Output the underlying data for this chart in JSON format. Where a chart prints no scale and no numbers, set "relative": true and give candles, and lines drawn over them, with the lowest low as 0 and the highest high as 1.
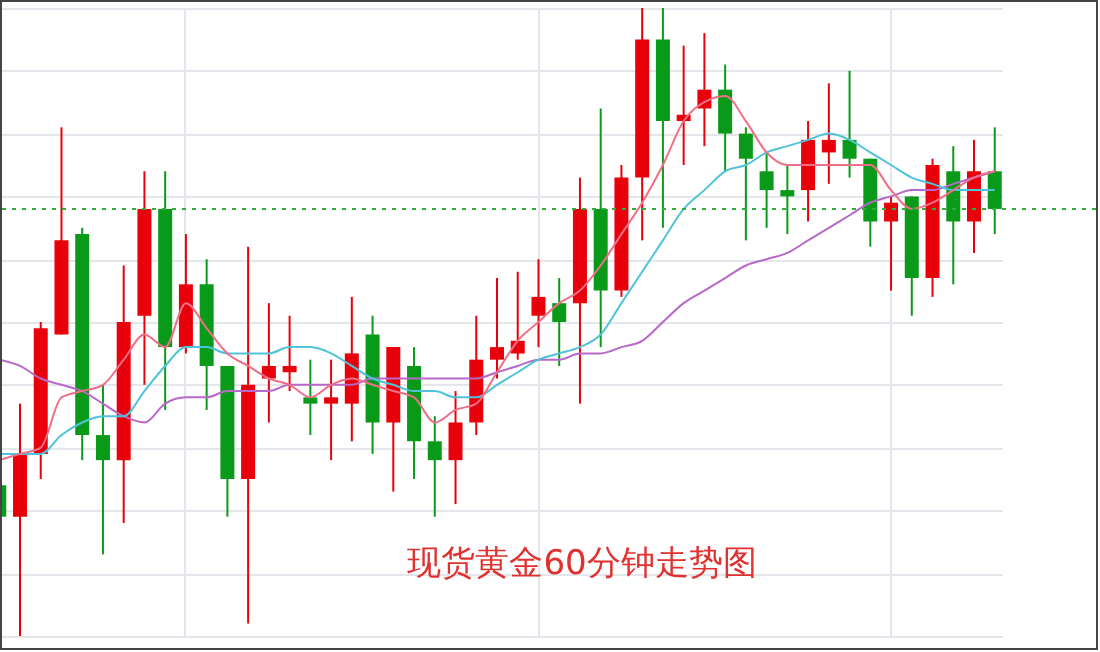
{
  "chart_data": {
    "type": "candlestick",
    "relative": true,
    "grid": true,
    "categories": [
      null,
      null,
      null,
      null,
      null,
      null,
      null,
      null,
      null,
      null,
      null,
      null,
      null,
      null,
      null,
      null,
      null,
      null,
      null,
      null,
      null,
      null,
      null,
      null,
      null,
      null,
      null,
      null,
      null,
      null,
      null,
      null,
      null,
      null,
      null,
      null,
      null,
      null,
      null,
      null,
      null,
      null,
      null,
      null,
      null,
      null,
      null,
      null,
      null
    ],
    "ohlc": [
      [
        0.24,
        0.25,
        0.19,
        0.19
      ],
      [
        0.19,
        0.37,
        0,
        0.29
      ],
      [
        0.29,
        0.5,
        0.25,
        0.49
      ],
      [
        0.48,
        0.81,
        0.48,
        0.63
      ],
      [
        0.64,
        0.65,
        0.28,
        0.32
      ],
      [
        0.32,
        0.4,
        0.13,
        0.28
      ],
      [
        0.28,
        0.59,
        0.18,
        0.5
      ],
      [
        0.51,
        0.74,
        0.4,
        0.68
      ],
      [
        0.68,
        0.74,
        0.36,
        0.46
      ],
      [
        0.46,
        0.64,
        0.45,
        0.56
      ],
      [
        0.56,
        0.6,
        0.36,
        0.43
      ],
      [
        0.43,
        0.43,
        0.19,
        0.25
      ],
      [
        0.25,
        0.62,
        0.02,
        0.4
      ],
      [
        0.41,
        0.53,
        0.34,
        0.43
      ],
      [
        0.42,
        0.51,
        0.39,
        0.43
      ],
      [
        0.38,
        0.44,
        0.32,
        0.37
      ],
      [
        0.37,
        0.44,
        0.28,
        0.38
      ],
      [
        0.37,
        0.54,
        0.31,
        0.45
      ],
      [
        0.48,
        0.51,
        0.29,
        0.34
      ],
      [
        0.34,
        0.46,
        0.23,
        0.46
      ],
      [
        0.43,
        0.46,
        0.25,
        0.31
      ],
      [
        0.31,
        0.35,
        0.19,
        0.28
      ],
      [
        0.28,
        0.39,
        0.21,
        0.34
      ],
      [
        0.34,
        0.51,
        0.32,
        0.44
      ],
      [
        0.44,
        0.57,
        0.41,
        0.46
      ],
      [
        0.45,
        0.58,
        0.44,
        0.47
      ],
      [
        0.51,
        0.6,
        0.46,
        0.54
      ],
      [
        0.53,
        0.57,
        0.43,
        0.5
      ],
      [
        0.53,
        0.73,
        0.37,
        0.68
      ],
      [
        0.68,
        0.84,
        0.46,
        0.55
      ],
      [
        0.55,
        0.75,
        0.54,
        0.73
      ],
      [
        0.73,
        1,
        0.63,
        0.95
      ],
      [
        0.95,
        1,
        0.65,
        0.82
      ],
      [
        0.82,
        0.94,
        0.75,
        0.83
      ],
      [
        0.84,
        0.96,
        0.78,
        0.87
      ],
      [
        0.87,
        0.91,
        0.74,
        0.8
      ],
      [
        0.8,
        0.81,
        0.63,
        0.76
      ],
      [
        0.74,
        0.77,
        0.65,
        0.71
      ],
      [
        0.71,
        0.75,
        0.64,
        0.7
      ],
      [
        0.71,
        0.82,
        0.66,
        0.79
      ],
      [
        0.77,
        0.88,
        0.72,
        0.79
      ],
      [
        0.79,
        0.9,
        0.73,
        0.76
      ],
      [
        0.76,
        0.76,
        0.62,
        0.66
      ],
      [
        0.66,
        0.7,
        0.55,
        0.69
      ],
      [
        0.7,
        0.7,
        0.51,
        0.57
      ],
      [
        0.57,
        0.76,
        0.54,
        0.75
      ],
      [
        0.74,
        0.78,
        0.56,
        0.66
      ],
      [
        0.66,
        0.79,
        0.61,
        0.74
      ],
      [
        0.74,
        0.81,
        0.64,
        0.68
      ]
    ],
    "colors": [
      "#0a9a1a",
      "#e8000b",
      "#e8000b",
      "#e8000b",
      "#0a9a1a",
      "#0a9a1a",
      "#e8000b",
      "#e8000b",
      "#0a9a1a",
      "#e8000b",
      "#0a9a1a",
      "#0a9a1a",
      "#e8000b",
      "#e8000b",
      "#e8000b",
      "#0a9a1a",
      "#e8000b",
      "#e8000b",
      "#0a9a1a",
      "#e8000b",
      "#0a9a1a",
      "#0a9a1a",
      "#e8000b",
      "#e8000b",
      "#e8000b",
      "#e8000b",
      "#e8000b",
      "#0a9a1a",
      "#e8000b",
      "#0a9a1a",
      "#e8000b",
      "#e8000b",
      "#0a9a1a",
      "#e8000b",
      "#e8000b",
      "#0a9a1a",
      "#0a9a1a",
      "#0a9a1a",
      "#0a9a1a",
      "#e8000b",
      "#e8000b",
      "#0a9a1a",
      "#0a9a1a",
      "#e8000b",
      "#0a9a1a",
      "#e8000b",
      "#0a9a1a",
      "#e8000b",
      "#0a9a1a"
    ],
    "series": [
      {
        "type": "line",
        "color": "#b768c8",
        "values": [
          0.44,
          0.43,
          0.41,
          0.4,
          0.39,
          0.37,
          0.35,
          0.34,
          0.37,
          0.38,
          0.38,
          0.39,
          0.39,
          0.39,
          0.4,
          0.4,
          0.4,
          0.4,
          0.41,
          0.41,
          0.41,
          0.41,
          0.41,
          0.41,
          0.42,
          0.43,
          0.44,
          0.44,
          0.45,
          0.45,
          0.46,
          0.47,
          0.5,
          0.53,
          0.55,
          0.57,
          0.59,
          0.6,
          0.61,
          0.63,
          0.65,
          0.67,
          0.69,
          0.7,
          0.71,
          0.71,
          0.72,
          0.73,
          0.74
        ]
      },
      {
        "type": "line",
        "color": "#4fc3d9",
        "values": [
          0.29,
          0.29,
          0.29,
          0.32,
          0.34,
          0.35,
          0.35,
          0.39,
          0.43,
          0.46,
          0.46,
          0.45,
          0.45,
          0.45,
          0.46,
          0.46,
          0.45,
          0.43,
          0.41,
          0.4,
          0.39,
          0.39,
          0.38,
          0.38,
          0.4,
          0.42,
          0.44,
          0.45,
          0.46,
          0.48,
          0.53,
          0.58,
          0.63,
          0.68,
          0.71,
          0.74,
          0.75,
          0.77,
          0.78,
          0.79,
          0.8,
          0.79,
          0.77,
          0.75,
          0.73,
          0.72,
          0.71,
          0.71,
          0.71
        ]
      },
      {
        "type": "line",
        "color": "#ef6f86",
        "values": [
          0.28,
          0.29,
          0.3,
          0.38,
          0.39,
          0.4,
          0.44,
          0.48,
          0.46,
          0.53,
          0.49,
          0.45,
          0.43,
          0.41,
          0.4,
          0.38,
          0.4,
          0.41,
          0.4,
          0.39,
          0.38,
          0.34,
          0.36,
          0.37,
          0.42,
          0.47,
          0.5,
          0.53,
          0.55,
          0.59,
          0.64,
          0.69,
          0.75,
          0.82,
          0.85,
          0.86,
          0.82,
          0.77,
          0.75,
          0.75,
          0.75,
          0.75,
          0.75,
          0.71,
          0.68,
          0.69,
          0.71,
          0.73,
          0.74
        ]
      }
    ],
    "ref_lines": [
      {
        "axis": "y",
        "value": 0.68,
        "color": "#2fae3a",
        "line_style": "dotted"
      }
    ],
    "annotations": [
      "现货黄金60分钟走势图"
    ]
  }
}
